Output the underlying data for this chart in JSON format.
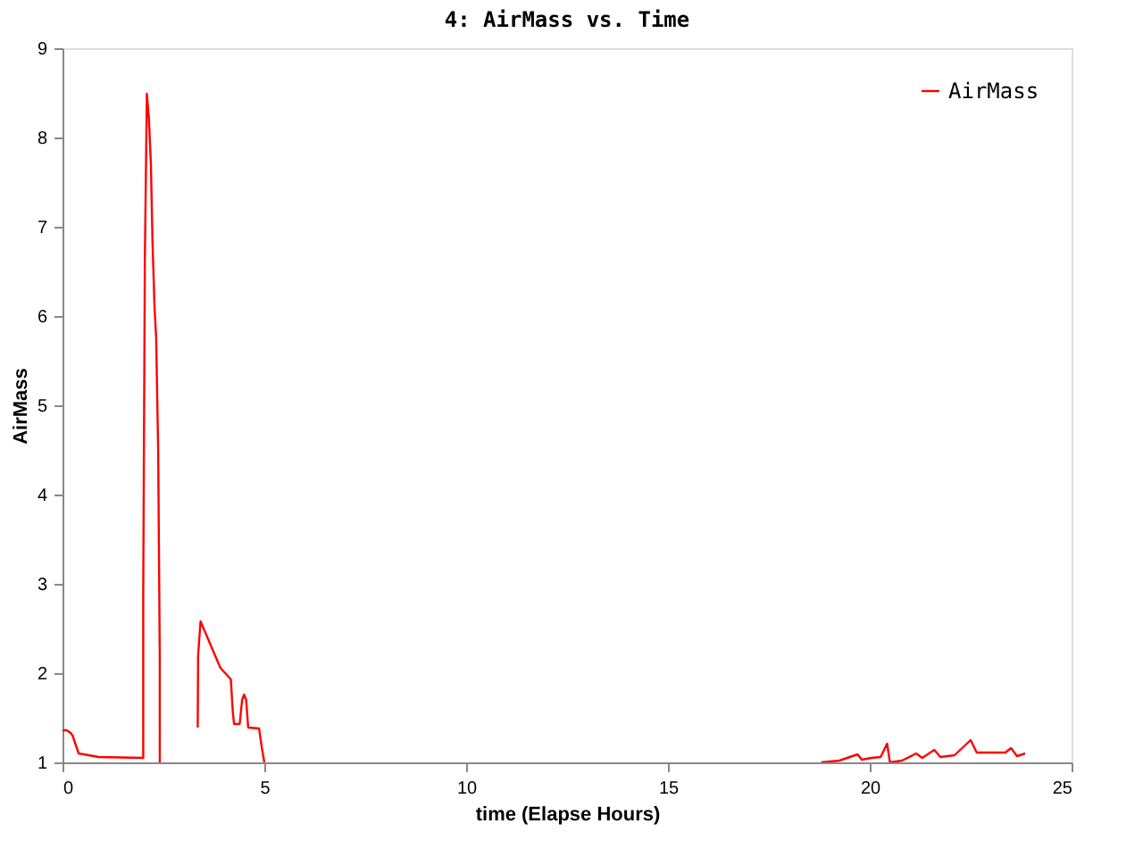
{
  "chart_data": {
    "type": "line",
    "title": "4: AirMass vs. Time",
    "xlabel": "time (Elapse Hours)",
    "ylabel": "AirMass",
    "xlim": [
      0,
      25
    ],
    "xticks": [
      0,
      5,
      10,
      15,
      20,
      25
    ],
    "ylim": [
      1,
      9
    ],
    "yticks": [
      1,
      2,
      3,
      4,
      5,
      6,
      7,
      8,
      9
    ],
    "legend": "top right",
    "grid": false,
    "marker": "none",
    "line_style": "solid",
    "x": [
      0,
      0.1,
      0.2,
      0.25,
      0.4,
      0.9,
      2.0,
      2.0,
      2.04,
      2.09,
      2.14,
      2.19,
      2.23,
      2.28,
      2.32,
      2.37,
      2.41,
      2.41,
      2.9,
      3.35,
      3.36,
      3.42,
      3.91,
      4.17,
      4.22,
      4.25,
      4.39,
      4.45,
      4.5,
      4.55,
      4.6,
      4.87,
      4.94,
      5.0,
      12,
      18.8,
      19.25,
      19.7,
      19.8,
      20.04,
      20.27,
      20.43,
      20.5,
      20.8,
      21.15,
      21.3,
      21.6,
      21.75,
      22.1,
      22.5,
      22.65,
      23.36,
      23.5,
      23.65,
      23.85
    ],
    "series": [
      {
        "name": "AirMass",
        "color": "#ff0000",
        "values": [
          1.36,
          1.36,
          1.33,
          1.3,
          1.1,
          1.06,
          1.05,
          2.9,
          6.62,
          8.49,
          8.22,
          7.7,
          6.83,
          6.1,
          5.76,
          4.5,
          2.16,
          1.0,
          null,
          1.39,
          2.2,
          2.58,
          2.06,
          1.93,
          1.56,
          1.43,
          1.43,
          1.7,
          1.76,
          1.7,
          1.39,
          1.38,
          1.16,
          1.0,
          null,
          1.0,
          1.02,
          1.09,
          1.03,
          1.05,
          1.06,
          1.21,
          1.0,
          1.02,
          1.1,
          1.05,
          1.14,
          1.06,
          1.08,
          1.25,
          1.11,
          1.11,
          1.16,
          1.07,
          1.1
        ]
      }
    ]
  }
}
